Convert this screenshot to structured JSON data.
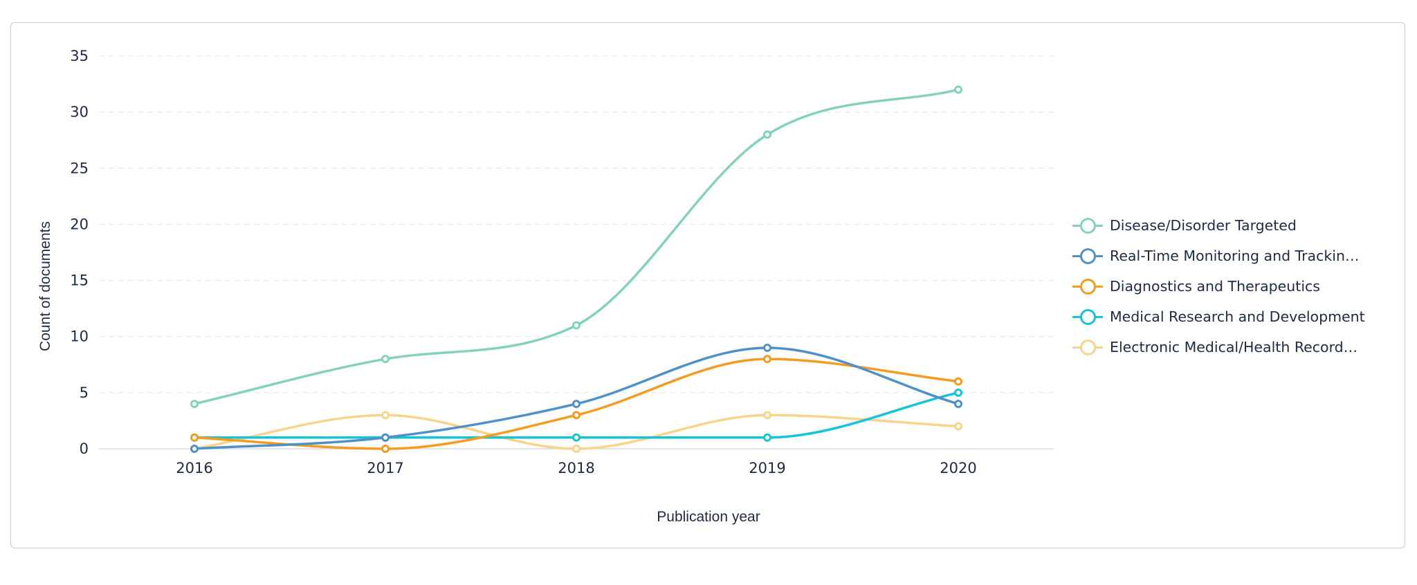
{
  "chart_data": {
    "type": "line",
    "xlabel": "Publication year",
    "ylabel": "Count of documents",
    "x": [
      "2016",
      "2017",
      "2018",
      "2019",
      "2020"
    ],
    "ylim": [
      0,
      35
    ],
    "yticks": [
      "0",
      "5",
      "10",
      "15",
      "20",
      "25",
      "30",
      "35"
    ],
    "grid": true,
    "legend_position": "right",
    "series": [
      {
        "name": "Disease/Disorder Targeted",
        "color": "#82d3b7",
        "values": [
          4,
          8,
          11,
          28,
          32
        ]
      },
      {
        "name": "Real-Time Monitoring and Trackin…",
        "color": "#4e91c9",
        "values": [
          0,
          1,
          4,
          9,
          4
        ]
      },
      {
        "name": "Diagnostics and Therapeutics",
        "color": "#f39c1f",
        "values": [
          1,
          0,
          3,
          8,
          6
        ]
      },
      {
        "name": "Medical Research and Development",
        "color": "#14c5d8",
        "values": [
          1,
          1,
          1,
          1,
          5
        ]
      },
      {
        "name": "Electronic Medical/Health Record…",
        "color": "#f7d48a",
        "values": [
          0,
          3,
          0,
          3,
          2
        ]
      }
    ]
  }
}
